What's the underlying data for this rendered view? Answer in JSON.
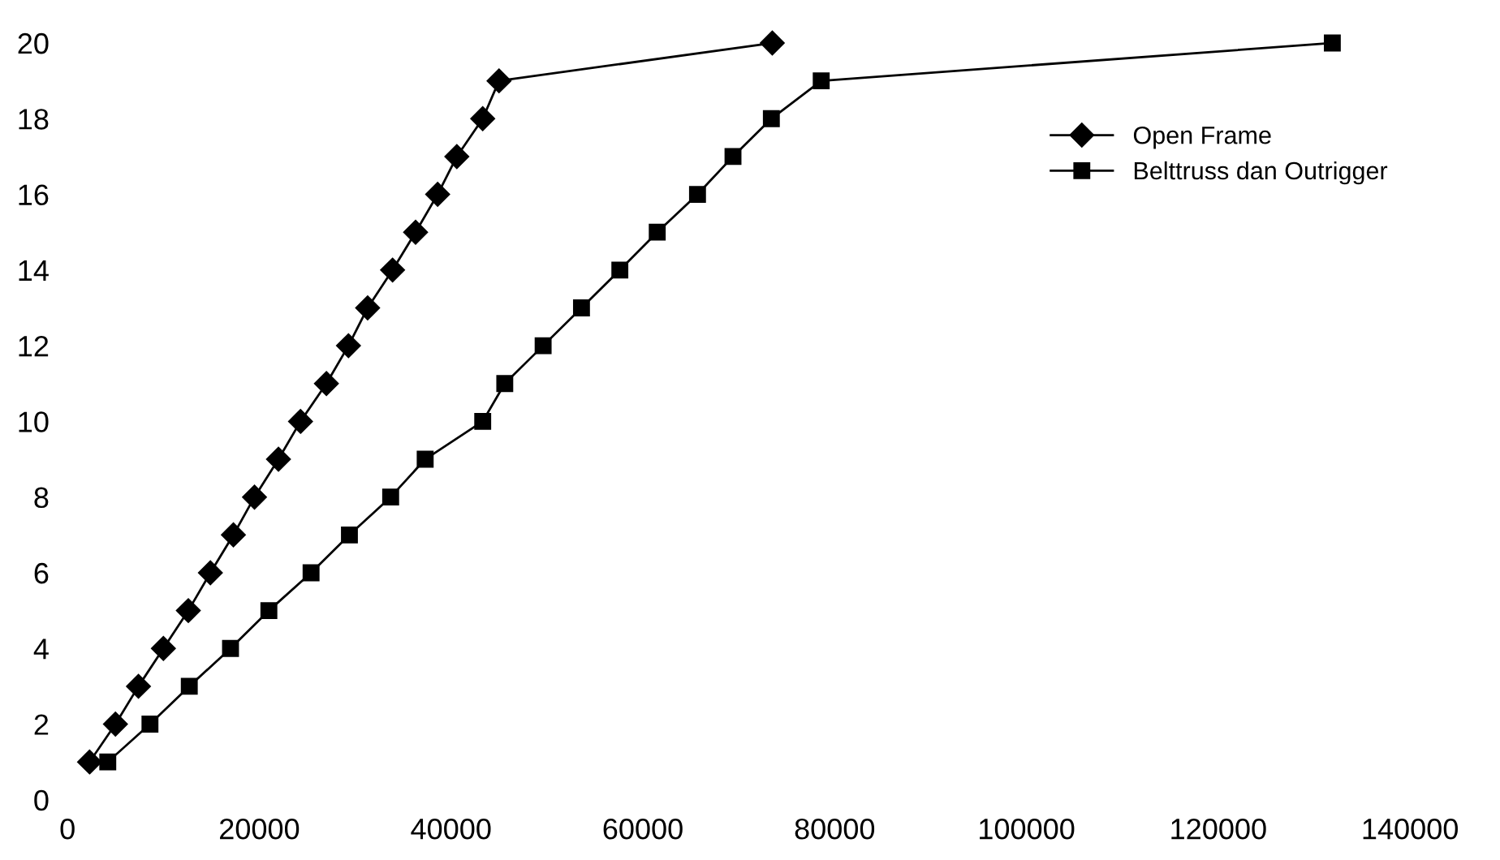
{
  "chart_data": {
    "type": "line",
    "legend": "right",
    "grid": false,
    "xlim": [
      0,
      140000
    ],
    "xticks": [
      0,
      20000,
      40000,
      60000,
      80000,
      100000,
      120000,
      140000
    ],
    "ylim": [
      0,
      20
    ],
    "yticks": [
      0,
      2,
      4,
      6,
      8,
      10,
      12,
      14,
      16,
      18,
      20
    ],
    "series": [
      {
        "name": "Open Frame",
        "color": "#000000",
        "marker": "diamond",
        "x": [
          2300,
          5000,
          7400,
          10000,
          12600,
          14900,
          17300,
          19500,
          22000,
          24300,
          27000,
          29300,
          31300,
          33900,
          36300,
          38600,
          40600,
          43300,
          45000,
          73500
        ],
        "values": [
          1,
          2,
          3,
          4,
          5,
          6,
          7,
          8,
          9,
          10,
          11,
          12,
          13,
          14,
          15,
          16,
          17,
          18,
          19,
          20
        ]
      },
      {
        "name": "Belttruss dan Outrigger",
        "color": "#000000",
        "marker": "square",
        "x": [
          4200,
          8600,
          12700,
          17000,
          21000,
          25400,
          29400,
          33700,
          37300,
          43300,
          45600,
          49600,
          53600,
          57600,
          61500,
          65700,
          69400,
          73400,
          78600,
          131900
        ],
        "values": [
          1,
          2,
          3,
          4,
          5,
          6,
          7,
          8,
          9,
          10,
          11,
          12,
          13,
          14,
          15,
          16,
          17,
          18,
          19,
          20
        ]
      }
    ]
  }
}
